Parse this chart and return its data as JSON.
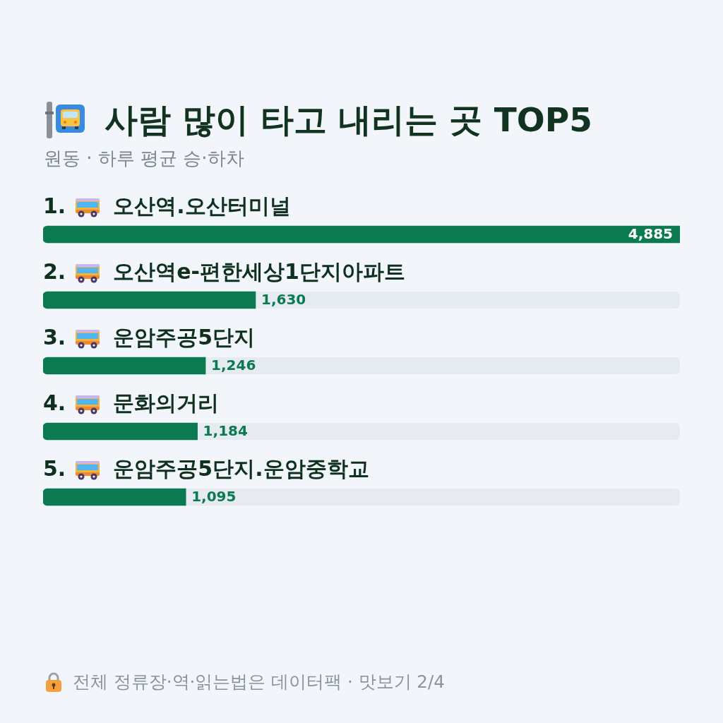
{
  "chart_data": {
    "type": "bar",
    "orientation": "horizontal",
    "title": "사람 많이 타고 내리는 곳 TOP5",
    "subtitle": "원동 · 하루 평균 승·하차",
    "categories": [
      "1. 오산역.오산터미널",
      "2. 오산역e-편한세상1단지아파트",
      "3. 운암주공5단지",
      "4. 문화의거리",
      "5. 운암주공5단지.운암중학교"
    ],
    "values": [
      4885,
      1630,
      1246,
      1184,
      1095
    ],
    "value_labels": [
      "4,885",
      "1,630",
      "1,246",
      "1,184",
      "1,095"
    ],
    "color": "#0b7a50",
    "tick_labels": "y",
    "annotations": [
      "전체 정류장·역·읽는법은 데이터팩 · 맛보기 2/4"
    ]
  }
}
